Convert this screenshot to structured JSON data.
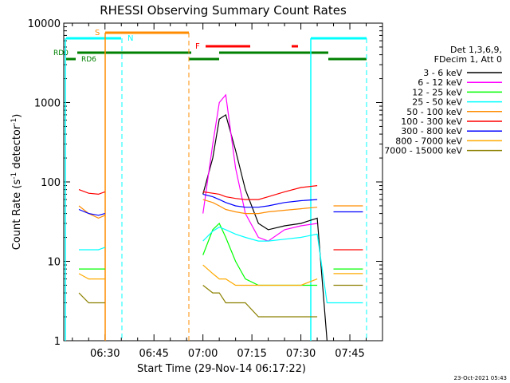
{
  "title": "RHESSI Observing Summary Count Rates",
  "xlabel": "Start Time (29-Nov-14 06:17:22)",
  "ylabel_main": "Count Rate (s",
  "ylabel_sup1": "-1",
  "ylabel_mid": " detector",
  "ylabel_sup2": "-1",
  "ylabel_end": ")",
  "footer": "23-Oct-2021 05:43",
  "legend": {
    "header1": "Det 1,3,6,9,",
    "header2": "FDecim 1, Att 0",
    "entries": [
      {
        "label": "3 - 6 keV",
        "color": "#000000"
      },
      {
        "label": "6 - 12 keV",
        "color": "#ff00ff"
      },
      {
        "label": "12 - 25 keV",
        "color": "#00ff00"
      },
      {
        "label": "25 - 50 keV",
        "color": "#00ffff"
      },
      {
        "label": "50 - 100 keV",
        "color": "#ff8c00"
      },
      {
        "label": "100 - 300 keV",
        "color": "#ff0000"
      },
      {
        "label": "300 - 800 keV",
        "color": "#0000ff"
      },
      {
        "label": "800 - 7000 keV",
        "color": "#ffaa00"
      },
      {
        "label": "7000 - 15000 keV",
        "color": "#8b8000"
      }
    ]
  },
  "flag_labels": {
    "s": "S",
    "n": "N",
    "f": "F",
    "rd0": "RD0",
    "rd6": "RD6"
  },
  "chart_data": {
    "type": "line",
    "y_scale": "log",
    "ylim": [
      1,
      10000
    ],
    "xlim": [
      "06:17:22",
      "07:55:00"
    ],
    "x_ticks": [
      "06:30",
      "06:45",
      "07:00",
      "07:15",
      "07:30",
      "07:45"
    ],
    "y_ticks": [
      "1",
      "10",
      "100",
      "1000",
      "10000"
    ],
    "x": [
      "06:22",
      "06:25",
      "06:28",
      "06:30",
      "06:31",
      "06:58",
      "07:00",
      "07:03",
      "07:05",
      "07:07",
      "07:10",
      "07:13",
      "07:17",
      "07:20",
      "07:25",
      "07:30",
      "07:35",
      "07:38",
      "07:40",
      "07:45",
      "07:49"
    ],
    "series": [
      {
        "name": "3 - 6 keV",
        "color": "#000000",
        "values": [
          null,
          null,
          null,
          null,
          null,
          null,
          70,
          200,
          620,
          700,
          250,
          80,
          30,
          25,
          28,
          30,
          35,
          1,
          null,
          null,
          null
        ]
      },
      {
        "name": "6 - 12 keV",
        "color": "#ff00ff",
        "values": [
          null,
          null,
          null,
          null,
          null,
          null,
          40,
          300,
          1000,
          1250,
          150,
          40,
          20,
          18,
          25,
          28,
          30,
          null,
          null,
          null,
          null
        ]
      },
      {
        "name": "12 - 25 keV",
        "color": "#00ff00",
        "values": [
          8,
          8,
          8,
          8,
          null,
          null,
          12,
          25,
          30,
          20,
          10,
          6,
          5,
          5,
          5,
          5,
          5,
          null,
          8,
          8,
          8
        ]
      },
      {
        "name": "25 - 50 keV",
        "color": "#00ffff",
        "values": [
          14,
          14,
          14,
          15,
          null,
          null,
          18,
          24,
          27,
          25,
          22,
          20,
          18,
          18,
          19,
          20,
          22,
          3,
          3,
          3,
          3
        ]
      },
      {
        "name": "50 - 100 keV",
        "color": "#ff8c00",
        "values": [
          50,
          40,
          35,
          38,
          null,
          null,
          60,
          55,
          50,
          45,
          42,
          40,
          40,
          42,
          44,
          46,
          48,
          null,
          50,
          50,
          50
        ]
      },
      {
        "name": "100 - 300 keV",
        "color": "#ff0000",
        "values": [
          80,
          72,
          70,
          75,
          null,
          null,
          75,
          72,
          70,
          65,
          62,
          60,
          60,
          65,
          75,
          85,
          90,
          null,
          14,
          14,
          14
        ]
      },
      {
        "name": "300 - 800 keV",
        "color": "#0000ff",
        "values": [
          45,
          40,
          38,
          40,
          null,
          null,
          70,
          65,
          60,
          55,
          50,
          48,
          48,
          50,
          55,
          58,
          60,
          null,
          42,
          42,
          42
        ]
      },
      {
        "name": "800 - 7000 keV",
        "color": "#ffaa00",
        "values": [
          7,
          6,
          6,
          6,
          null,
          null,
          9,
          7,
          6,
          6,
          5,
          5,
          5,
          5,
          5,
          5,
          6,
          null,
          7,
          7,
          7
        ]
      },
      {
        "name": "7000 - 15000 keV",
        "color": "#8b8000",
        "values": [
          4,
          3,
          3,
          3,
          null,
          null,
          5,
          4,
          4,
          3,
          3,
          3,
          2,
          2,
          2,
          2,
          2,
          null,
          5,
          5,
          5
        ]
      }
    ]
  }
}
